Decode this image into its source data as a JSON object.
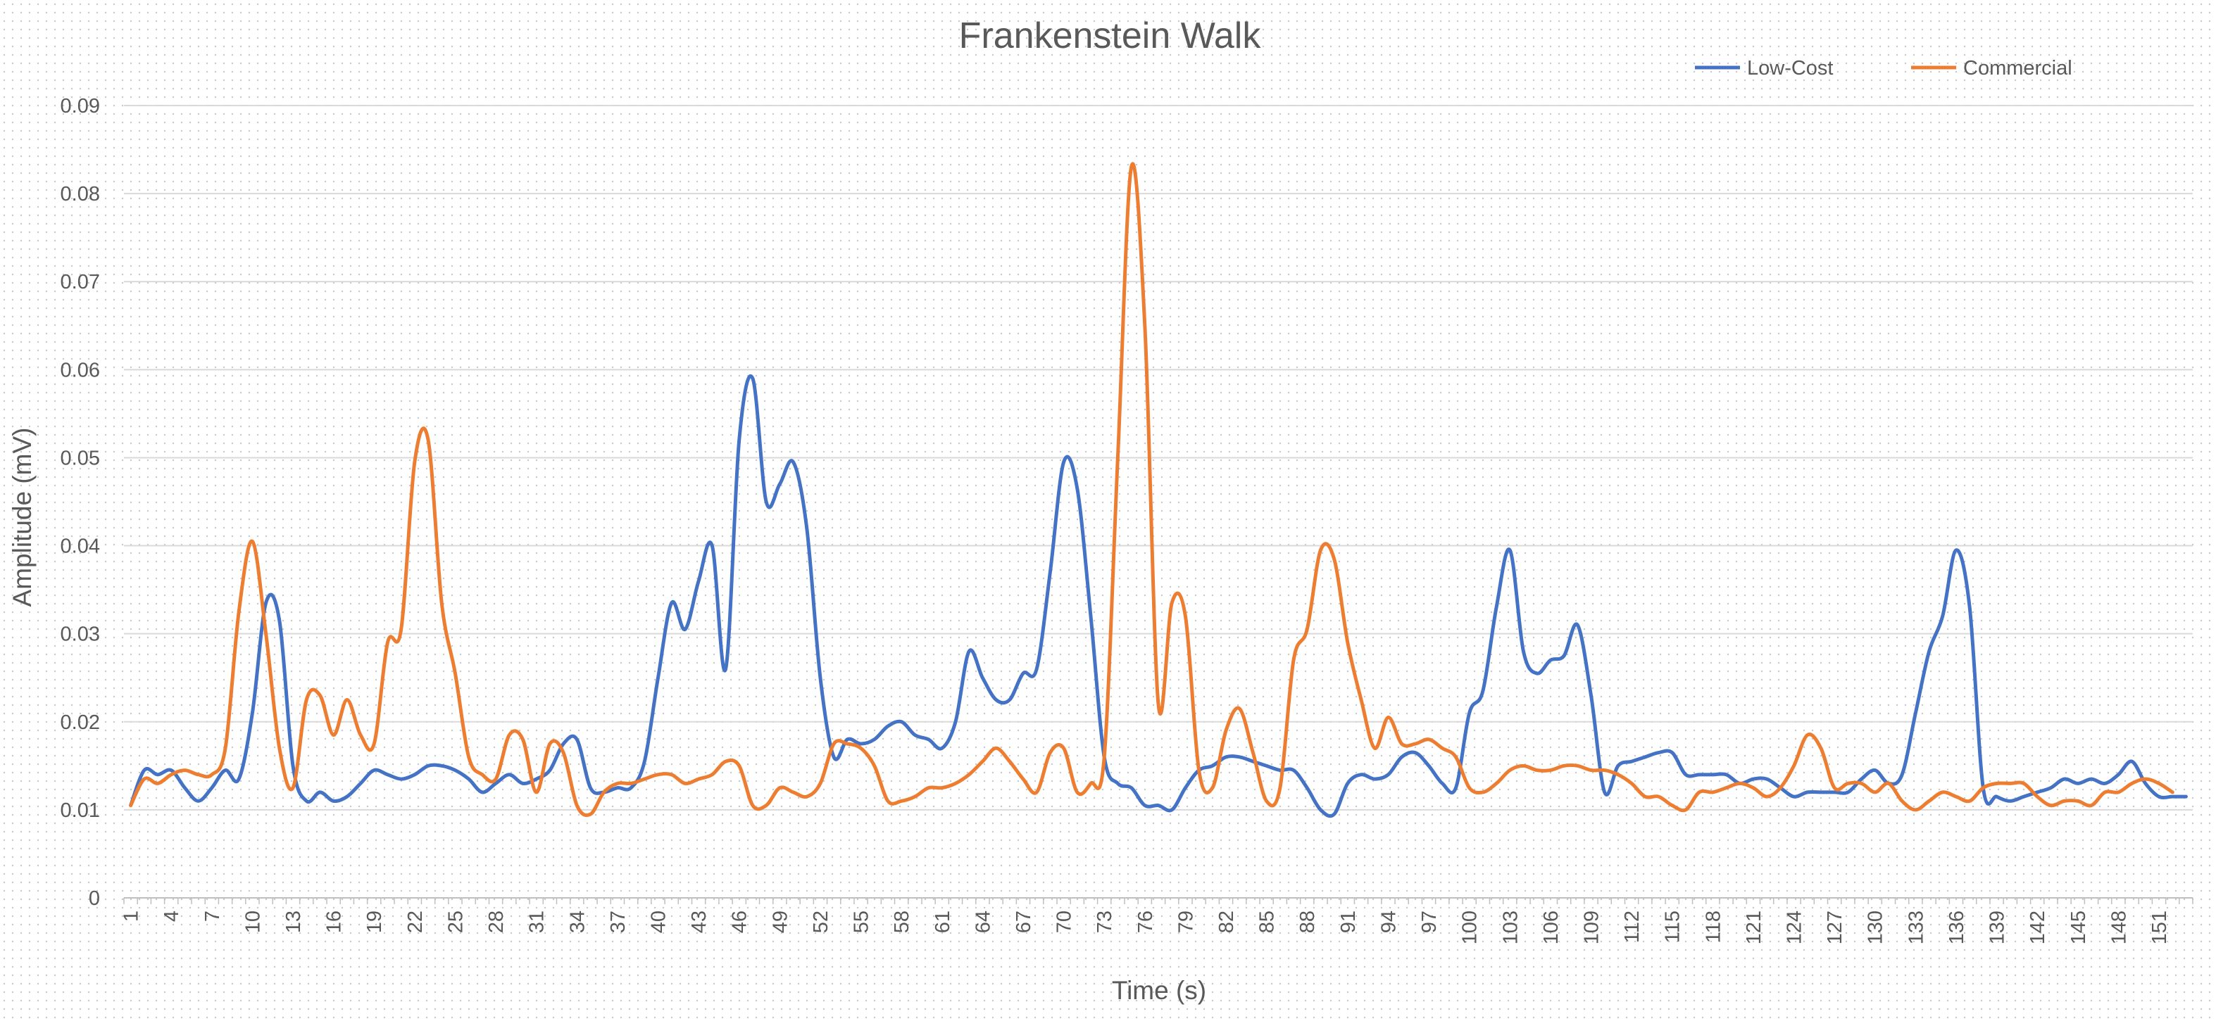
{
  "chart_data": {
    "type": "line",
    "title": "Frankenstein Walk",
    "xlabel": "Time (s)",
    "ylabel": "Amplitude (mV)",
    "ylim": [
      0,
      0.09
    ],
    "y_ticks": [
      "0",
      "0.01",
      "0.02",
      "0.03",
      "0.04",
      "0.05",
      "0.06",
      "0.07",
      "0.08",
      "0.09"
    ],
    "x_tick_labels": [
      "1",
      "4",
      "7",
      "10",
      "13",
      "16",
      "19",
      "22",
      "25",
      "28",
      "31",
      "34",
      "37",
      "40",
      "43",
      "46",
      "49",
      "52",
      "55",
      "58",
      "61",
      "64",
      "67",
      "70",
      "73",
      "76",
      "79",
      "82",
      "85",
      "88",
      "91",
      "94",
      "97",
      "100",
      "103",
      "106",
      "109",
      "112",
      "115",
      "118",
      "121",
      "124",
      "127",
      "130",
      "133",
      "136",
      "139",
      "142",
      "145",
      "148",
      "151"
    ],
    "grid": true,
    "legend_position": "top-right",
    "series": [
      {
        "name": "Low-Cost",
        "color": "#4472C4",
        "values": [
          0.0105,
          0.0145,
          0.014,
          0.0145,
          0.0125,
          0.011,
          0.0125,
          0.0145,
          0.0135,
          0.021,
          0.0335,
          0.0315,
          0.015,
          0.011,
          0.012,
          0.011,
          0.0115,
          0.013,
          0.0145,
          0.014,
          0.0135,
          0.014,
          0.015,
          0.015,
          0.0145,
          0.0135,
          0.012,
          0.013,
          0.014,
          0.013,
          0.0135,
          0.0145,
          0.0175,
          0.018,
          0.0125,
          0.012,
          0.0125,
          0.0125,
          0.0155,
          0.025,
          0.0335,
          0.0305,
          0.036,
          0.04,
          0.026,
          0.052,
          0.059,
          0.045,
          0.047,
          0.0495,
          0.042,
          0.025,
          0.016,
          0.018,
          0.0175,
          0.018,
          0.0195,
          0.02,
          0.0185,
          0.018,
          0.017,
          0.02,
          0.028,
          0.025,
          0.0225,
          0.0225,
          0.0255,
          0.026,
          0.037,
          0.0495,
          0.0465,
          0.032,
          0.016,
          0.013,
          0.0125,
          0.0105,
          0.0105,
          0.01,
          0.0125,
          0.0145,
          0.015,
          0.016,
          0.016,
          0.0155,
          0.015,
          0.0145,
          0.0145,
          0.0125,
          0.01,
          0.0095,
          0.013,
          0.014,
          0.0135,
          0.014,
          0.016,
          0.0165,
          0.015,
          0.013,
          0.0125,
          0.021,
          0.0235,
          0.033,
          0.0395,
          0.028,
          0.0255,
          0.027,
          0.0275,
          0.031,
          0.023,
          0.012,
          0.015,
          0.0155,
          0.016,
          0.0165,
          0.0165,
          0.014,
          0.014,
          0.014,
          0.014,
          0.013,
          0.0135,
          0.0135,
          0.0125,
          0.0115,
          0.012,
          0.012,
          0.012,
          0.012,
          0.0135,
          0.0145,
          0.013,
          0.014,
          0.021,
          0.028,
          0.032,
          0.0395,
          0.033,
          0.0125,
          0.0115,
          0.011,
          0.0115,
          0.012,
          0.0125,
          0.0135,
          0.013,
          0.0135,
          0.013,
          0.014,
          0.0155,
          0.013,
          0.0115,
          0.0115,
          0.0115
        ]
      },
      {
        "name": "Commercial",
        "color": "#ED7D31",
        "values": [
          0.0105,
          0.0135,
          0.013,
          0.014,
          0.0145,
          0.014,
          0.014,
          0.017,
          0.0325,
          0.0405,
          0.03,
          0.017,
          0.0125,
          0.0225,
          0.023,
          0.0185,
          0.0225,
          0.0185,
          0.0175,
          0.029,
          0.0305,
          0.0495,
          0.052,
          0.0335,
          0.0255,
          0.016,
          0.014,
          0.0135,
          0.0185,
          0.018,
          0.012,
          0.0175,
          0.0165,
          0.0105,
          0.0095,
          0.012,
          0.013,
          0.013,
          0.0135,
          0.014,
          0.014,
          0.013,
          0.0135,
          0.014,
          0.0155,
          0.015,
          0.0105,
          0.0105,
          0.0125,
          0.012,
          0.0115,
          0.013,
          0.0175,
          0.0175,
          0.017,
          0.015,
          0.011,
          0.011,
          0.0115,
          0.0125,
          0.0125,
          0.013,
          0.014,
          0.0155,
          0.017,
          0.0155,
          0.0135,
          0.012,
          0.0165,
          0.017,
          0.012,
          0.013,
          0.016,
          0.05,
          0.083,
          0.065,
          0.022,
          0.0335,
          0.032,
          0.0145,
          0.0125,
          0.019,
          0.0215,
          0.0165,
          0.011,
          0.0125,
          0.027,
          0.0305,
          0.0395,
          0.0385,
          0.029,
          0.0225,
          0.017,
          0.0205,
          0.0175,
          0.0175,
          0.018,
          0.017,
          0.016,
          0.0125,
          0.012,
          0.013,
          0.0145,
          0.015,
          0.0145,
          0.0145,
          0.015,
          0.015,
          0.0145,
          0.0145,
          0.014,
          0.013,
          0.0115,
          0.0115,
          0.0105,
          0.01,
          0.012,
          0.012,
          0.0125,
          0.013,
          0.0125,
          0.0115,
          0.0125,
          0.015,
          0.0185,
          0.017,
          0.0125,
          0.013,
          0.013,
          0.012,
          0.013,
          0.011,
          0.01,
          0.011,
          0.012,
          0.0115,
          0.011,
          0.0125,
          0.013,
          0.013,
          0.013,
          0.0115,
          0.0105,
          0.011,
          0.011,
          0.0105,
          0.012,
          0.012,
          0.013,
          0.0135,
          0.013,
          0.012
        ]
      }
    ]
  }
}
